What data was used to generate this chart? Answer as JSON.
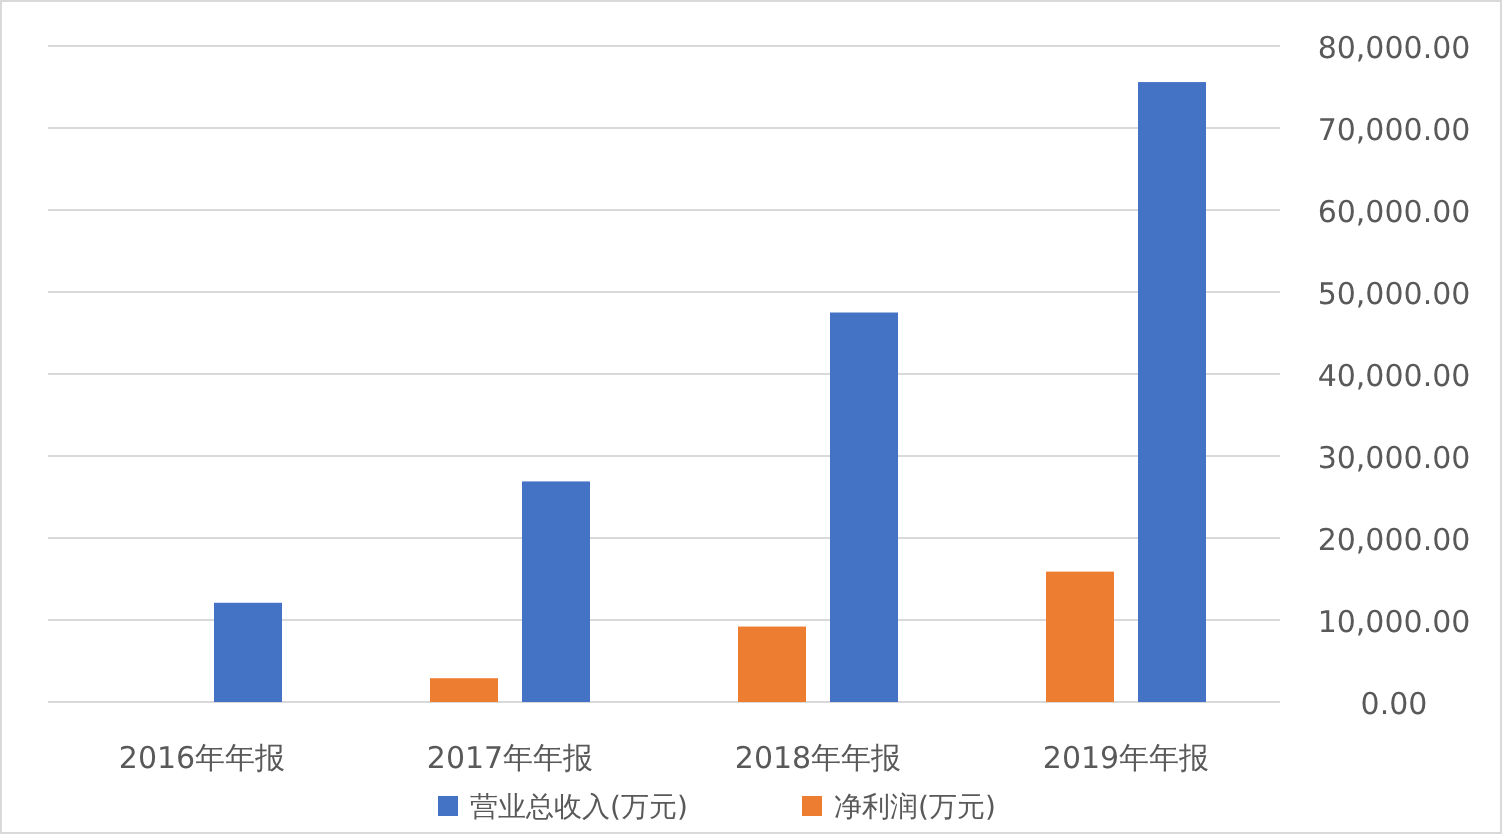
{
  "chart_data": {
    "type": "bar",
    "categories": [
      "2016年年报",
      "2017年年报",
      "2018年年报",
      "2019年年报"
    ],
    "series": [
      {
        "name": "营业总收入(万元)",
        "color": "#4472c4",
        "values": [
          12100,
          26900,
          47500,
          75600
        ]
      },
      {
        "name": "净利润(万元)",
        "color": "#ed7d31",
        "values": [
          null,
          2900,
          9200,
          15900
        ]
      }
    ],
    "ylim": [
      0,
      80000
    ],
    "yticks": [
      {
        "value": 0,
        "label": "0.00"
      },
      {
        "value": 10000,
        "label": "10,000.00"
      },
      {
        "value": 20000,
        "label": "20,000.00"
      },
      {
        "value": 30000,
        "label": "30,000.00"
      },
      {
        "value": 40000,
        "label": "40,000.00"
      },
      {
        "value": 50000,
        "label": "50,000.00"
      },
      {
        "value": 60000,
        "label": "60,000.00"
      },
      {
        "value": 70000,
        "label": "70,000.00"
      },
      {
        "value": 80000,
        "label": "80,000.00"
      }
    ],
    "grid": "y",
    "legend": "bottom"
  }
}
